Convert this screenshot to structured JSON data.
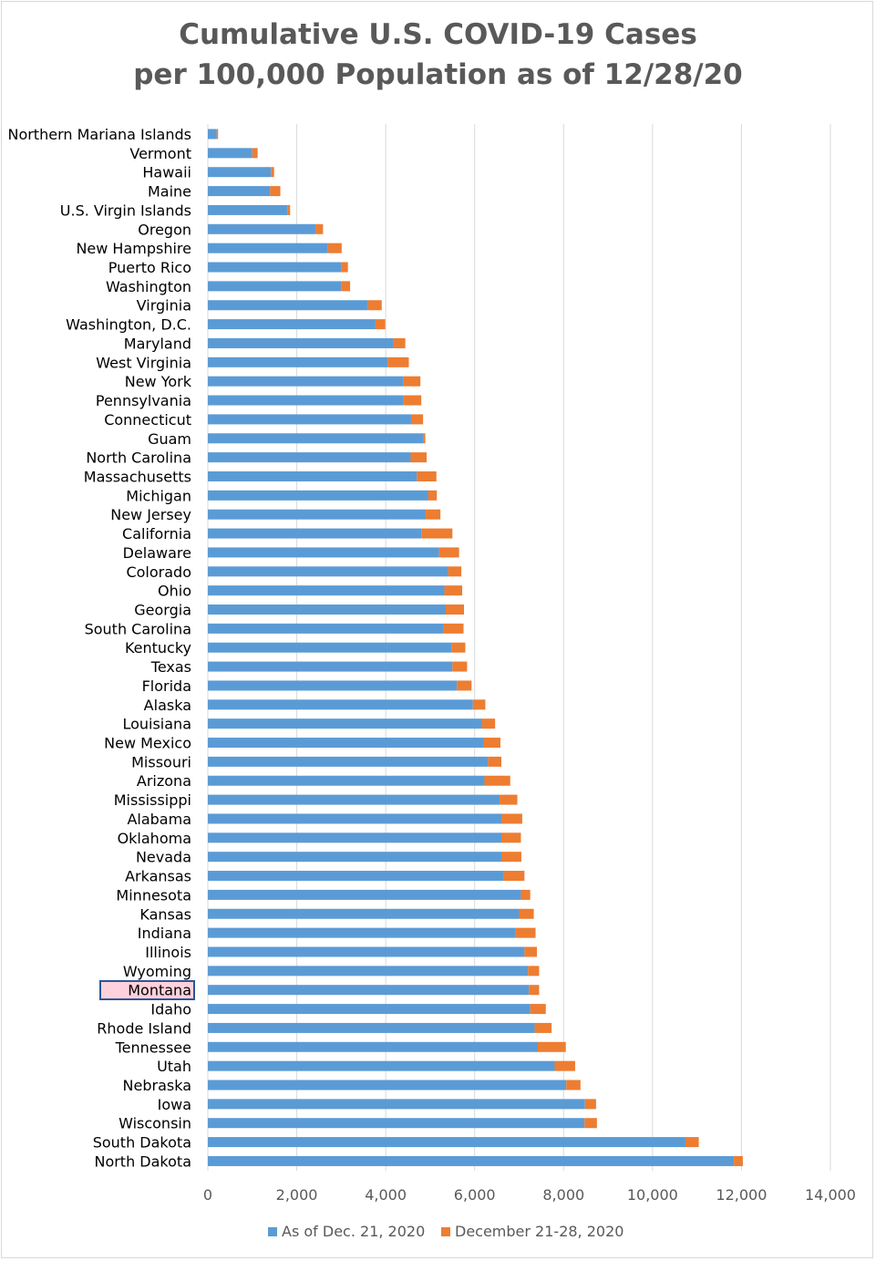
{
  "title_lines": [
    "Cumulative U.S. COVID-19 Cases",
    "per 100,000 Population as of 12/28/20"
  ],
  "colors": {
    "series_1": "#5b9bd5",
    "series_2": "#ed7d31",
    "grid": "#d9d9d9",
    "text": "#000000",
    "tick_text": "#595959",
    "highlight_fill": "#ffd1dc",
    "highlight_border": "#2f5597"
  },
  "highlighted_category": "Montana",
  "chart_data": {
    "type": "bar",
    "orientation": "horizontal",
    "stacked": true,
    "title": "Cumulative U.S. COVID-19 Cases per 100,000 Population as of 12/28/20",
    "xlim": [
      0,
      14000
    ],
    "x_ticks": [
      0,
      2000,
      4000,
      6000,
      8000,
      10000,
      12000,
      14000
    ],
    "x_tick_labels": [
      "0",
      "2,000",
      "4,000",
      "6,000",
      "8,000",
      "10,000",
      "12,000",
      "14,000"
    ],
    "grid": "vertical",
    "legend": "bottom",
    "categories": [
      "Northern Mariana Islands",
      "Vermont",
      "Hawaii",
      "Maine",
      "U.S. Virgin Islands",
      "Oregon",
      "New Hampshire",
      "Puerto Rico",
      "Washington",
      "Virginia",
      "Washington, D.C.",
      "Maryland",
      "West Virginia",
      "New York",
      "Pennsylvania",
      "Connecticut",
      "Guam",
      "North Carolina",
      "Massachusetts",
      "Michigan",
      "New Jersey",
      "California",
      "Delaware",
      "Colorado",
      "Ohio",
      "Georgia",
      "South Carolina",
      "Kentucky",
      "Texas",
      "Florida",
      "Alaska",
      "Louisiana",
      "New Mexico",
      "Missouri",
      "Arizona",
      "Mississippi",
      "Alabama",
      "Oklahoma",
      "Nevada",
      "Arkansas",
      "Minnesota",
      "Kansas",
      "Indiana",
      "Illinois",
      "Wyoming",
      "Montana",
      "Idaho",
      "Rhode Island",
      "Tennessee",
      "Utah",
      "Nebraska",
      "Iowa",
      "Wisconsin",
      "South Dakota",
      "North Dakota"
    ],
    "series": [
      {
        "name": "As of Dec. 21, 2020",
        "values": [
          200,
          1000,
          1420,
          1400,
          1790,
          2420,
          2700,
          3000,
          3000,
          3600,
          3770,
          4170,
          4040,
          4400,
          4400,
          4570,
          4850,
          4560,
          4700,
          4950,
          4900,
          4800,
          5200,
          5400,
          5320,
          5350,
          5300,
          5480,
          5500,
          5600,
          5960,
          6160,
          6200,
          6300,
          6220,
          6560,
          6600,
          6600,
          6600,
          6650,
          7040,
          7000,
          6920,
          7120,
          7200,
          7220,
          7250,
          7350,
          7420,
          7800,
          8060,
          8480,
          8470,
          10740,
          11830
        ]
      },
      {
        "name": "December 21-28, 2020",
        "values": [
          30,
          120,
          70,
          230,
          60,
          170,
          310,
          150,
          200,
          310,
          220,
          270,
          480,
          380,
          400,
          270,
          40,
          360,
          440,
          200,
          330,
          700,
          450,
          300,
          400,
          410,
          450,
          310,
          330,
          330,
          280,
          300,
          380,
          300,
          580,
          400,
          470,
          440,
          450,
          470,
          210,
          330,
          450,
          280,
          250,
          230,
          350,
          380,
          630,
          460,
          320,
          250,
          280,
          300,
          200
        ]
      }
    ]
  }
}
